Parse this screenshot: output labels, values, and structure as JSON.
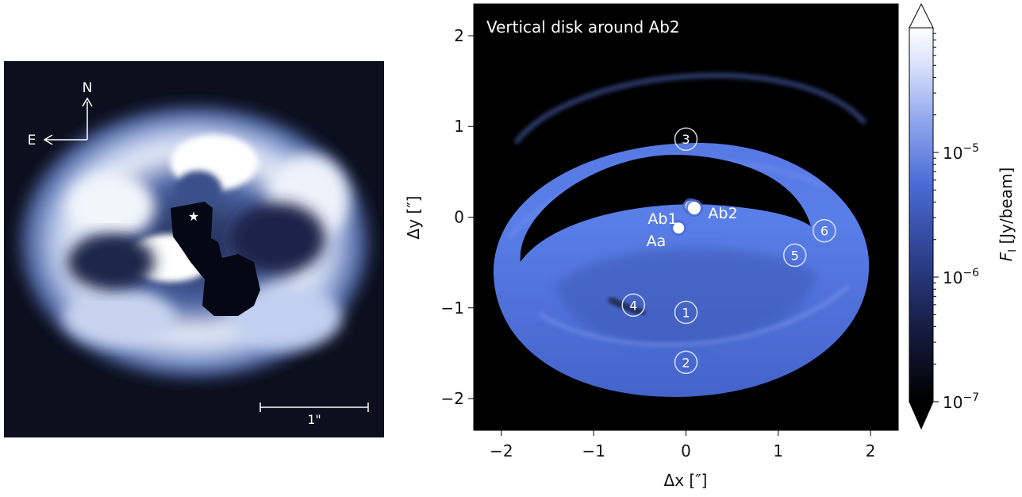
{
  "observation_panel": {
    "compass": {
      "north": "N",
      "east": "E"
    },
    "scale_bar_label": "1\"",
    "star_markers": [
      "★",
      "★"
    ]
  },
  "model_panel": {
    "title": "Vertical disk around Ab2",
    "source_labels": [
      "Ab1",
      "Ab2",
      "Aa"
    ],
    "region_markers": [
      "1",
      "2",
      "3",
      "4",
      "5",
      "6"
    ]
  },
  "chart_data": {
    "type": "heatmap",
    "xlabel": "Δx [″]",
    "ylabel": "Δy [″]",
    "xlim": [
      -2.3,
      2.3
    ],
    "ylim": [
      -2.35,
      2.35
    ],
    "x_ticks": [
      -2,
      -1,
      0,
      1,
      2
    ],
    "y_ticks": [
      -2,
      -1,
      0,
      1,
      2
    ],
    "x_tick_labels": [
      "−2",
      "−1",
      "0",
      "1",
      "2"
    ],
    "y_tick_labels": [
      "−2",
      "−1",
      "0",
      "1",
      "2"
    ],
    "colorbar": {
      "label": "F_I [Jy/beam]",
      "label_main": "F",
      "label_sub": "I",
      "label_rest": " [Jy/beam]",
      "scale": "log",
      "range": [
        1e-07,
        0.0001
      ],
      "extend": "both",
      "ticks": [
        {
          "value": 1e-05,
          "base": "10",
          "exp": "−5"
        },
        {
          "value": 1e-06,
          "base": "10",
          "exp": "−6"
        },
        {
          "value": 1e-07,
          "base": "10",
          "exp": "−7"
        }
      ],
      "colors": [
        "#000000",
        "#141a3c",
        "#2c3f8a",
        "#4a6bd6",
        "#8fa6ee",
        "#d9e1fb",
        "#ffffff"
      ]
    },
    "stars": [
      {
        "name": "Ab1",
        "x": 0.05,
        "y": 0.12
      },
      {
        "name": "Ab2",
        "x": 0.09,
        "y": 0.1
      },
      {
        "name": "Aa",
        "x": -0.08,
        "y": -0.12
      }
    ],
    "markers": [
      {
        "label": "1",
        "x": 0.0,
        "y": -1.05
      },
      {
        "label": "2",
        "x": 0.0,
        "y": -1.6
      },
      {
        "label": "3",
        "x": 0.0,
        "y": 0.86
      },
      {
        "label": "4",
        "x": -0.57,
        "y": -0.97
      },
      {
        "label": "5",
        "x": 1.18,
        "y": -0.42
      },
      {
        "label": "6",
        "x": 1.5,
        "y": -0.15
      }
    ]
  },
  "colors": {
    "disk_blue": "#5a7ee8",
    "marker_stroke": "#dfe6fa"
  }
}
